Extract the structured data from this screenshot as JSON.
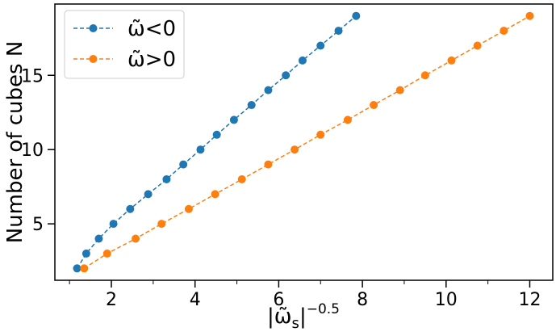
{
  "chart_data": {
    "type": "line",
    "title": "",
    "xlabel": "|ω̃ₛ|⁻⁰·⁵",
    "ylabel": "Number of cubes N",
    "xlim": [
      0.65,
      12.55
    ],
    "ylim": [
      1.2,
      19.8
    ],
    "x_ticks": [
      2,
      4,
      6,
      8,
      10,
      12
    ],
    "y_ticks": [
      5,
      10,
      15
    ],
    "grid": false,
    "legend_position": "top-left",
    "series": [
      {
        "name": "ω̃<0",
        "color": "#1f77b4",
        "line_style": "dashed",
        "marker": "circle",
        "x": [
          1.18,
          1.4,
          1.7,
          2.05,
          2.45,
          2.88,
          3.32,
          3.72,
          4.13,
          4.52,
          4.93,
          5.35,
          5.75,
          6.17,
          6.57,
          7.0,
          7.43,
          7.85
        ],
        "y": [
          2,
          3,
          4,
          5,
          6,
          7,
          8,
          9,
          10,
          11,
          12,
          13,
          14,
          15,
          16,
          17,
          18,
          19
        ]
      },
      {
        "name": "ω̃>0",
        "color": "#ff7f0e",
        "line_style": "dashed",
        "marker": "circle",
        "x": [
          1.35,
          1.9,
          2.58,
          3.2,
          3.85,
          4.48,
          5.12,
          5.75,
          6.38,
          7.0,
          7.65,
          8.27,
          8.9,
          9.5,
          10.13,
          10.75,
          11.38,
          12.0
        ],
        "y": [
          2,
          3,
          4,
          5,
          6,
          7,
          8,
          9,
          10,
          11,
          12,
          13,
          14,
          15,
          16,
          17,
          18,
          19
        ]
      }
    ]
  }
}
